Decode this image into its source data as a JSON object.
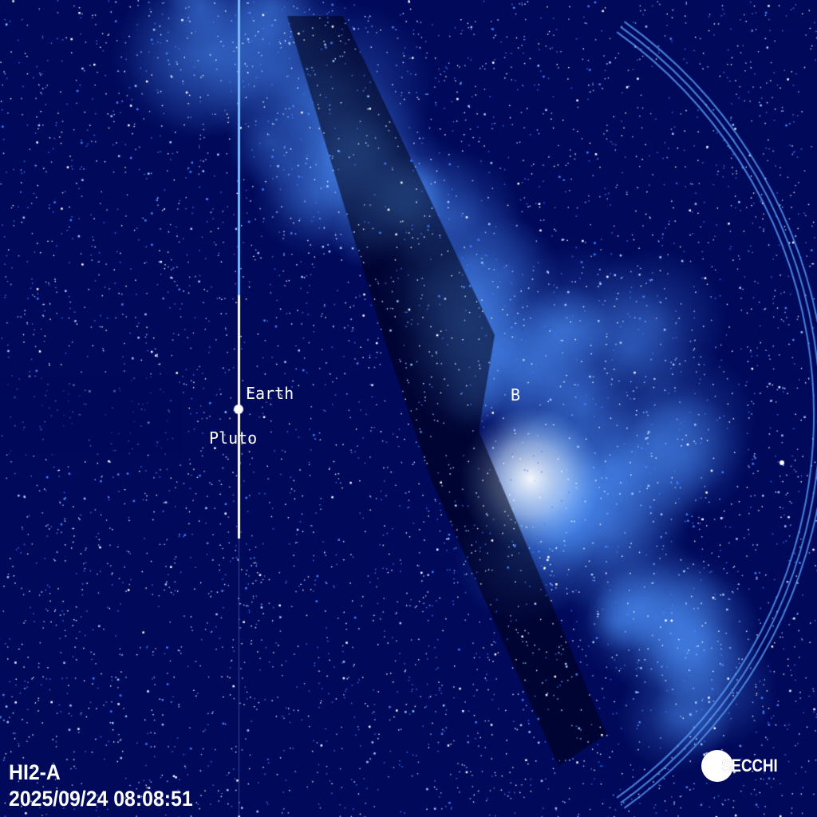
{
  "instrument": "HI2-A",
  "timestamp": "2025/09/24 08:08:51",
  "logo": "SECCHI",
  "labels": {
    "earth": "Earth",
    "pluto": "Pluto",
    "b": "B"
  },
  "colors": {
    "background": "#00095a",
    "stars": "#ffffff",
    "milky_way": "#3f8cff"
  }
}
